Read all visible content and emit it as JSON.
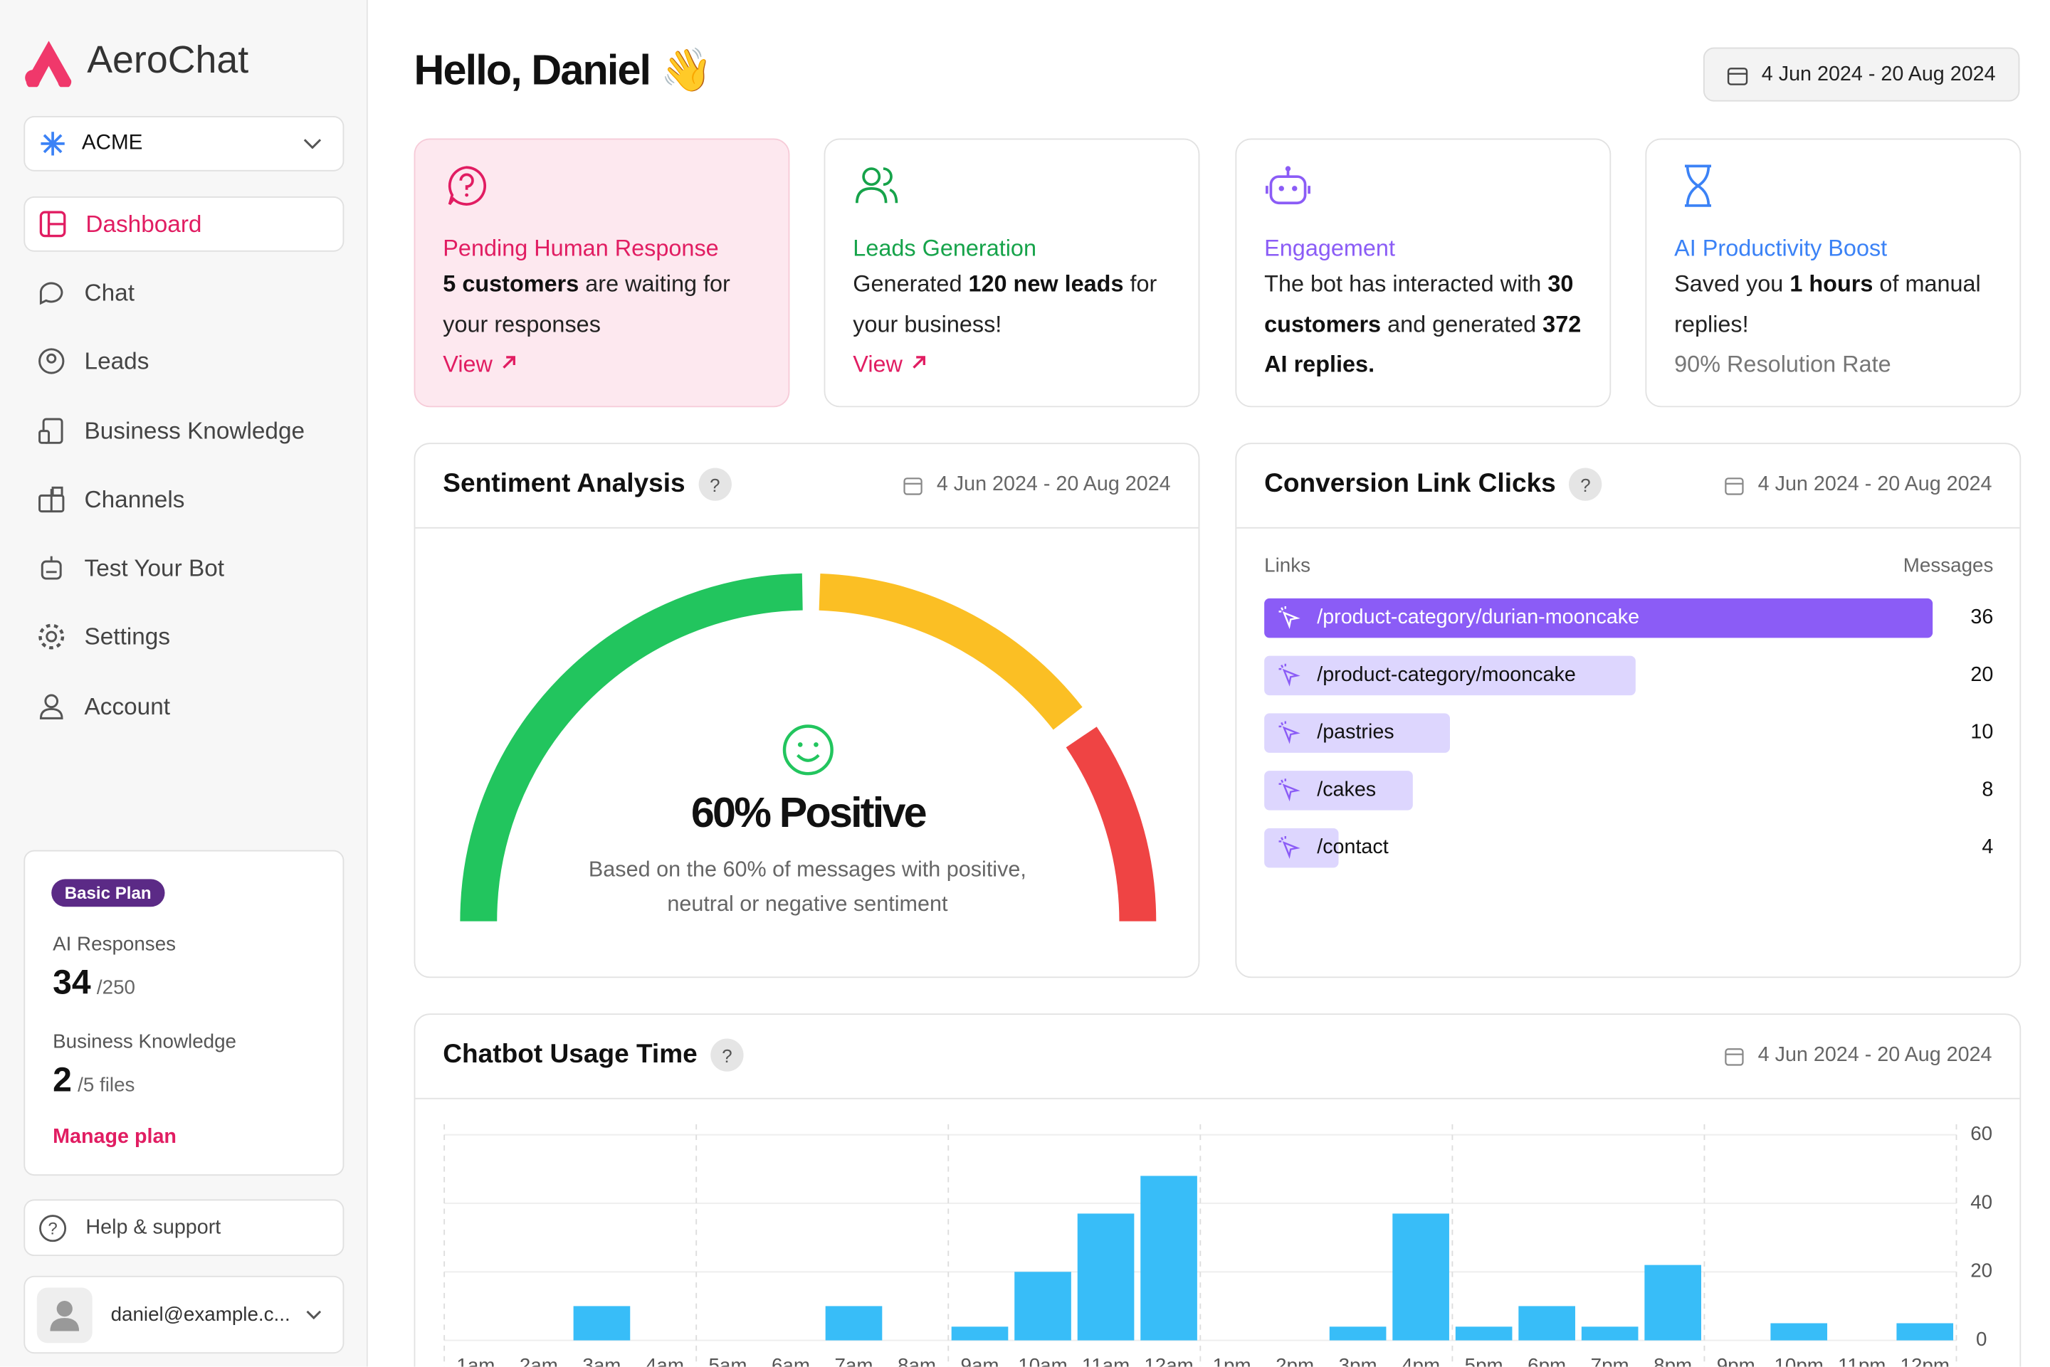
{
  "brand": "AeroChat",
  "org": "ACME",
  "nav": [
    "Dashboard",
    "Chat",
    "Leads",
    "Business Knowledge",
    "Channels",
    "Test Your Bot",
    "Settings",
    "Account"
  ],
  "plan": {
    "badge": "Basic Plan",
    "ai_label": "AI Responses",
    "ai_used": 34,
    "ai_total": "/250",
    "kb_label": "Business Knowledge",
    "kb_used": 2,
    "kb_total": "/5 files",
    "manage": "Manage plan"
  },
  "help": "Help & support",
  "user": "daniel@example.c...",
  "greeting": "Hello, Daniel 👋",
  "date_range": "4 Jun 2024 - 20 Aug 2024",
  "cards": [
    {
      "title": "Pending Human Response",
      "body": [
        "5 customers",
        " are waiting for your responses"
      ],
      "link": "View"
    },
    {
      "title": "Leads Generation",
      "body": [
        "Generated ",
        "120 new leads",
        " for your business!"
      ],
      "link": "View"
    },
    {
      "title": "Engagement",
      "body": [
        "The bot has interacted with ",
        "30 customers",
        " and generated ",
        "372 AI replies."
      ]
    },
    {
      "title": "AI Productivity Boost",
      "body": [
        "Saved you ",
        "1 hours",
        " of manual replies!"
      ],
      "note": "90% Resolution Rate"
    }
  ],
  "sentiment": {
    "title": "Sentiment Analysis",
    "help": "?",
    "date": "4 Jun 2024 - 20 Aug 2024",
    "headline": "60% Positive",
    "caption": "Based on the 60% of messages with positive, neutral or negative  sentiment"
  },
  "chart_data": [
    {
      "type": "hbar",
      "title": "Conversion Link Clicks",
      "help": "?",
      "date": "4 Jun 2024 - 20 Aug 2024",
      "category_header": "Links",
      "value_header": "Messages",
      "categories": [
        "/product-category/durian-mooncake",
        "/product-category/mooncake",
        "/pastries",
        "/cakes",
        "/contact"
      ],
      "values": [
        36,
        20,
        10,
        8,
        4
      ],
      "bar_colors": [
        "#8b5cf6",
        "#ddd6fe",
        "#ddd6fe",
        "#ddd6fe",
        "#ddd6fe"
      ]
    },
    {
      "type": "bar",
      "title": "Chatbot Usage Time",
      "help": "?",
      "date": "4 Jun 2024 - 20 Aug 2024",
      "categories": [
        "1am",
        "2am",
        "3am",
        "4am",
        "5am",
        "6am",
        "7am",
        "8am",
        "9am",
        "10am",
        "11am",
        "12am",
        "1pm",
        "2pm",
        "3pm",
        "4pm",
        "5pm",
        "6pm",
        "7pm",
        "8pm",
        "9pm",
        "10pm",
        "11pm",
        "12pm"
      ],
      "values": [
        0,
        0,
        10,
        0,
        0,
        0,
        10,
        0,
        4,
        20,
        37,
        48,
        0,
        0,
        4,
        37,
        4,
        10,
        4,
        22,
        0,
        5,
        0,
        5
      ],
      "color": "#38bdf8",
      "ylim": [
        0,
        60
      ],
      "yticks": [
        0,
        20,
        40,
        60
      ],
      "grid": true
    }
  ]
}
